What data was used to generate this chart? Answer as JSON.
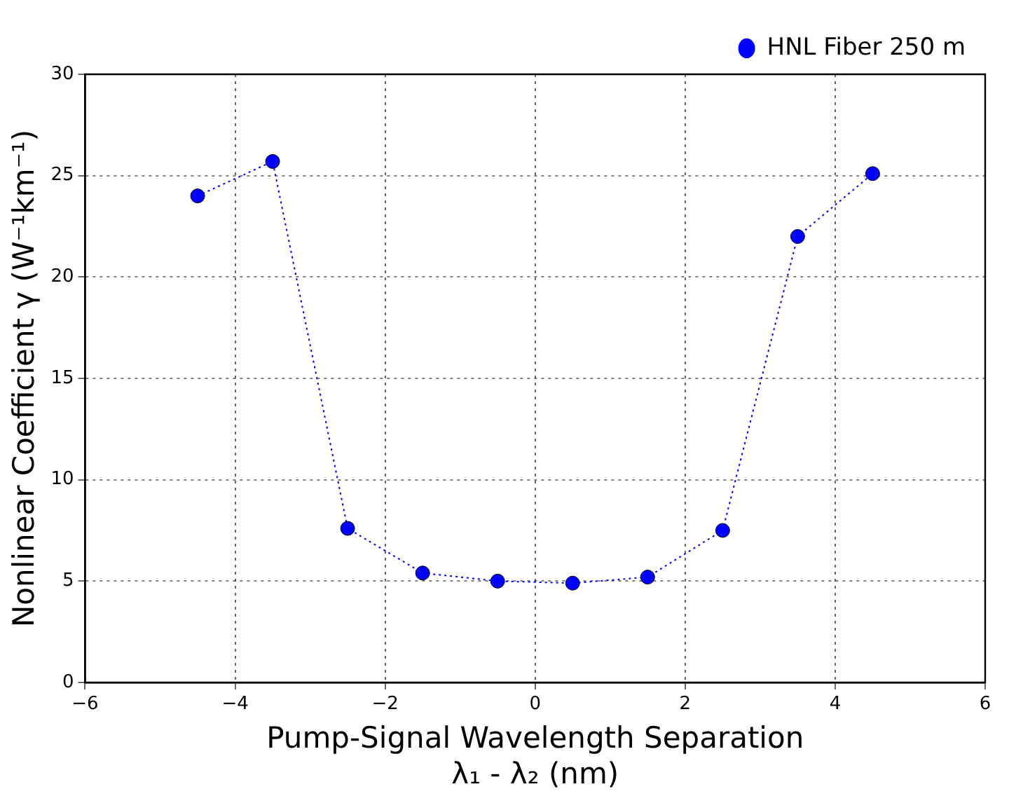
{
  "chart_data": {
    "type": "line",
    "xlabel": "Pump-Signal Wavelength Separation\nλ₁ - λ₂ (nm)",
    "ylabel": "Nonlinear Coefficient γ (W⁻¹km⁻¹)",
    "x": [
      -4.5,
      -3.5,
      -2.5,
      -1.5,
      -0.5,
      0.5,
      1.5,
      2.5,
      3.5,
      4.5
    ],
    "series": [
      {
        "name": "HNL Fiber 250 m",
        "color": "#0000ff",
        "values": [
          24.0,
          25.7,
          7.6,
          5.4,
          5.0,
          4.9,
          5.2,
          7.5,
          22.0,
          25.1
        ]
      }
    ],
    "xlim": [
      -6,
      6
    ],
    "xticks": [
      -6,
      -4,
      -2,
      0,
      2,
      4,
      6
    ],
    "ylim": [
      0,
      30
    ],
    "yticks": [
      0,
      5,
      10,
      15,
      20,
      25,
      30
    ],
    "grid": true,
    "legend": "top right",
    "marker": "circle",
    "line_style": "dotted"
  }
}
